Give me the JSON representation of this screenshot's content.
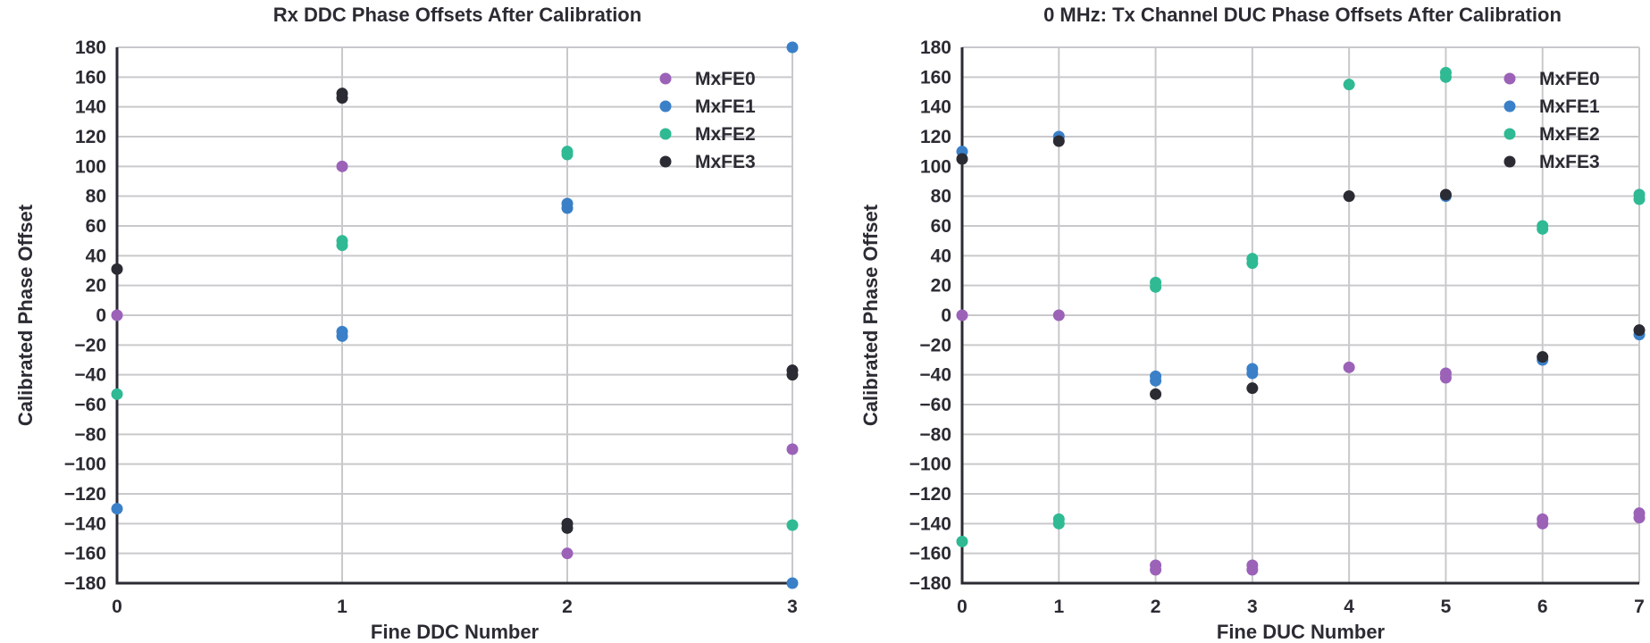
{
  "chart_data": [
    {
      "type": "scatter",
      "title": "Rx DDC Phase Offsets After Calibration",
      "xlabel": "Fine DDC Number",
      "ylabel": "Calibrated Phase Offset",
      "xlim": [
        0,
        3
      ],
      "ylim": [
        -180,
        180
      ],
      "x_ticks": [
        0,
        1,
        2,
        3
      ],
      "y_ticks": [
        180,
        160,
        140,
        120,
        100,
        80,
        60,
        40,
        20,
        0,
        -20,
        -40,
        -60,
        -80,
        -100,
        -120,
        -140,
        -160,
        -180
      ],
      "grid": true,
      "legend_position": "top-right",
      "series": [
        {
          "name": "MxFE0",
          "color": "#9b62b8",
          "points": [
            [
              0,
              0
            ],
            [
              1,
              100
            ],
            [
              2,
              -160
            ],
            [
              3,
              -90
            ]
          ]
        },
        {
          "name": "MxFE1",
          "color": "#3a80c8",
          "points": [
            [
              0,
              -130
            ],
            [
              1,
              -11
            ],
            [
              1,
              -14
            ],
            [
              2,
              75
            ],
            [
              2,
              72
            ],
            [
              3,
              180
            ],
            [
              3,
              -180
            ]
          ]
        },
        {
          "name": "MxFE2",
          "color": "#2fba94",
          "points": [
            [
              0,
              -53
            ],
            [
              1,
              50
            ],
            [
              1,
              47
            ],
            [
              2,
              110
            ],
            [
              2,
              108
            ],
            [
              3,
              -141
            ]
          ]
        },
        {
          "name": "MxFE3",
          "color": "#2b2b33",
          "points": [
            [
              0,
              31
            ],
            [
              1,
              149
            ],
            [
              1,
              146
            ],
            [
              2,
              -140
            ],
            [
              2,
              -143
            ],
            [
              3,
              -37
            ],
            [
              3,
              -40
            ]
          ]
        }
      ]
    },
    {
      "type": "scatter",
      "title": "0 MHz: Tx Channel DUC Phase Offsets After Calibration",
      "xlabel": "Fine DUC Number",
      "ylabel": "Calibrated Phase Offset",
      "xlim": [
        0,
        7
      ],
      "ylim": [
        -180,
        180
      ],
      "x_ticks": [
        0,
        1,
        2,
        3,
        4,
        5,
        6,
        7
      ],
      "y_ticks": [
        180,
        160,
        140,
        120,
        100,
        80,
        60,
        40,
        20,
        0,
        -20,
        -40,
        -60,
        -80,
        -100,
        -120,
        -140,
        -160,
        -180
      ],
      "grid": true,
      "legend_position": "top-right",
      "series": [
        {
          "name": "MxFE0",
          "color": "#9b62b8",
          "points": [
            [
              0,
              0
            ],
            [
              1,
              0
            ],
            [
              2,
              -168
            ],
            [
              2,
              -171
            ],
            [
              3,
              -168
            ],
            [
              3,
              -171
            ],
            [
              4,
              -35
            ],
            [
              5,
              -39
            ],
            [
              5,
              -42
            ],
            [
              6,
              -137
            ],
            [
              6,
              -140
            ],
            [
              7,
              -133
            ],
            [
              7,
              -136
            ]
          ]
        },
        {
          "name": "MxFE1",
          "color": "#3a80c8",
          "points": [
            [
              0,
              110
            ],
            [
              1,
              120
            ],
            [
              2,
              -41
            ],
            [
              2,
              -44
            ],
            [
              3,
              -36
            ],
            [
              3,
              -39
            ],
            [
              5,
              80
            ],
            [
              6,
              -30
            ],
            [
              7,
              -13
            ]
          ]
        },
        {
          "name": "MxFE2",
          "color": "#2fba94",
          "points": [
            [
              0,
              -152
            ],
            [
              1,
              -137
            ],
            [
              1,
              -140
            ],
            [
              2,
              22
            ],
            [
              2,
              19
            ],
            [
              3,
              38
            ],
            [
              3,
              35
            ],
            [
              4,
              155
            ],
            [
              5,
              163
            ],
            [
              5,
              160
            ],
            [
              6,
              60
            ],
            [
              6,
              58
            ],
            [
              7,
              81
            ],
            [
              7,
              78
            ]
          ]
        },
        {
          "name": "MxFE3",
          "color": "#2b2b33",
          "points": [
            [
              0,
              105
            ],
            [
              1,
              117
            ],
            [
              2,
              -53
            ],
            [
              3,
              -49
            ],
            [
              4,
              80
            ],
            [
              5,
              81
            ],
            [
              6,
              -28
            ],
            [
              7,
              -10
            ]
          ]
        }
      ]
    }
  ]
}
